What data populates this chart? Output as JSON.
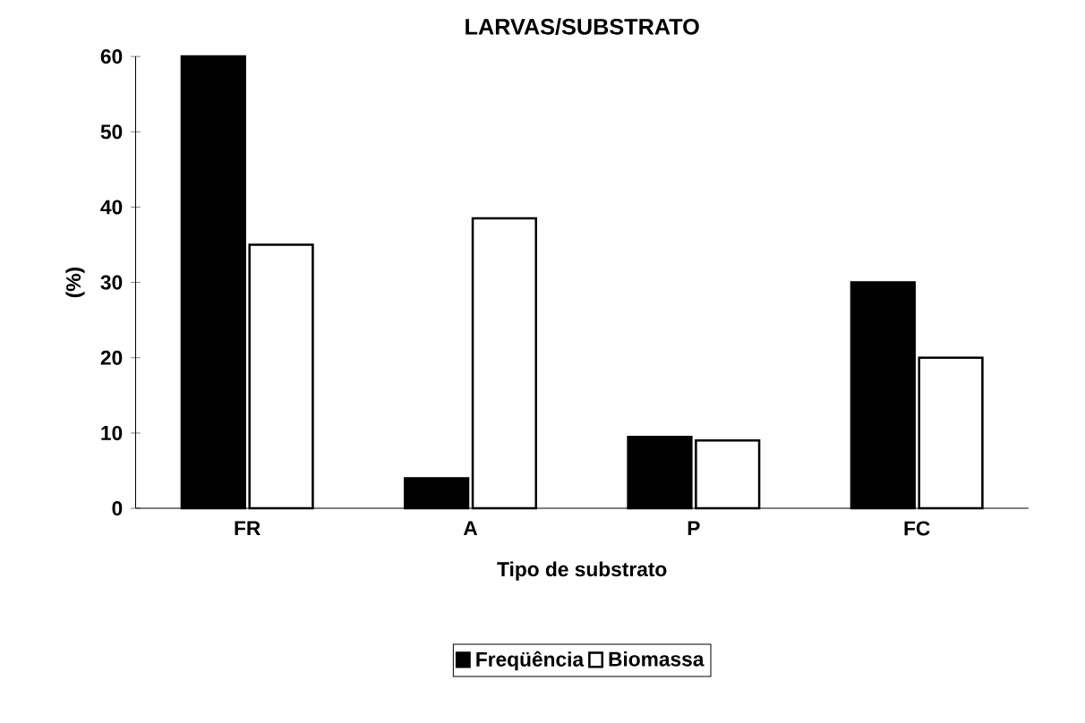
{
  "chart_data": {
    "type": "bar",
    "title": "LARVAS/SUBSTRATO",
    "xlabel": "Tipo de substrato",
    "ylabel": "(%)",
    "categories": [
      "FR",
      "A",
      "P",
      "FC"
    ],
    "series": [
      {
        "name": "Freqüência",
        "color": "#000000",
        "values": [
          60,
          4,
          9.5,
          30
        ]
      },
      {
        "name": "Biomassa",
        "color": "#ffffff",
        "values": [
          35,
          38.5,
          9,
          20
        ]
      }
    ],
    "ylim": [
      0,
      60
    ],
    "yticks": [
      0,
      10,
      20,
      30,
      40,
      50,
      60
    ],
    "grid": false,
    "legend": "bottom"
  }
}
